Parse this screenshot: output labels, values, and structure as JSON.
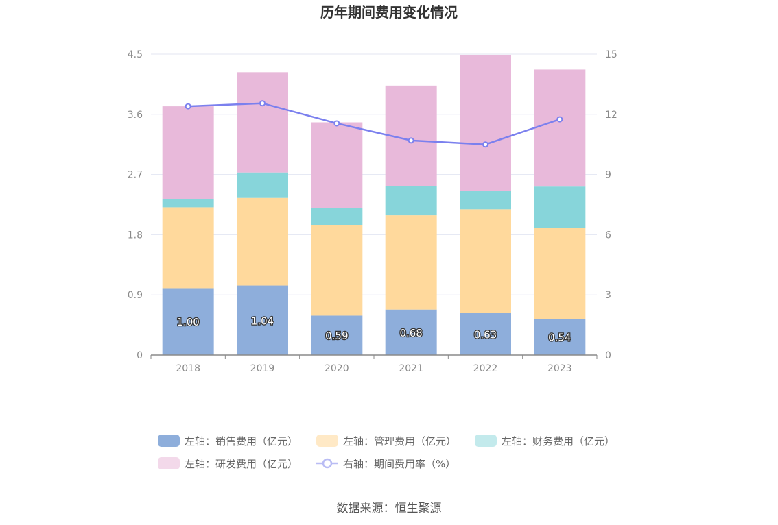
{
  "chart_data": {
    "type": "bar",
    "stacked": true,
    "title": "历年期间费用变化情况",
    "categories": [
      "2018",
      "2019",
      "2020",
      "2021",
      "2022",
      "2023"
    ],
    "y_left": {
      "min": 0,
      "max": 4.5,
      "ticks": [
        "0",
        "0.9",
        "1.8",
        "2.7",
        "3.6",
        "4.5"
      ]
    },
    "y_right": {
      "min": 0,
      "max": 15,
      "ticks": [
        "0",
        "3",
        "6",
        "9",
        "12",
        "15"
      ]
    },
    "grid": true,
    "legend_position": "bottom",
    "series": [
      {
        "name": "左轴：销售费用（亿元）",
        "axis": "left",
        "type": "bar",
        "color": "#8eaedb",
        "values": [
          1.0,
          1.04,
          0.59,
          0.68,
          0.63,
          0.54
        ],
        "labels": [
          "1.00",
          "1.04",
          "0.59",
          "0.68",
          "0.63",
          "0.54"
        ]
      },
      {
        "name": "左轴：管理费用（亿元）",
        "axis": "left",
        "type": "bar",
        "color": "#ffd99c",
        "values": [
          1.21,
          1.31,
          1.35,
          1.41,
          1.55,
          1.36
        ]
      },
      {
        "name": "左轴：财务费用（亿元）",
        "axis": "left",
        "type": "bar",
        "color": "#87d5da",
        "values": [
          0.12,
          0.38,
          0.26,
          0.44,
          0.27,
          0.62
        ]
      },
      {
        "name": "左轴：研发费用（亿元）",
        "axis": "left",
        "type": "bar",
        "color": "#e8b9da",
        "values": [
          1.39,
          1.5,
          1.28,
          1.5,
          2.04,
          1.75
        ]
      },
      {
        "name": "右轴：期间费用率（%）",
        "axis": "right",
        "type": "line",
        "color": "#7b80ee",
        "values": [
          12.4,
          12.55,
          11.55,
          10.7,
          10.5,
          11.75
        ]
      }
    ]
  },
  "legend": {
    "items": [
      {
        "label": "左轴：销售费用（亿元）",
        "color": "#8eaedb",
        "kind": "bar"
      },
      {
        "label": "左轴：管理费用（亿元）",
        "color": "#ffe9c6",
        "kind": "bar"
      },
      {
        "label": "左轴：财务费用（亿元）",
        "color": "#c3eaec",
        "kind": "bar"
      },
      {
        "label": "左轴：研发费用（亿元）",
        "color": "#f3d9ea",
        "kind": "bar"
      },
      {
        "label": "右轴：期间费用率（%）",
        "color": "#b9bcf4",
        "kind": "line"
      }
    ]
  },
  "footer": {
    "source": "数据来源：恒生聚源"
  }
}
